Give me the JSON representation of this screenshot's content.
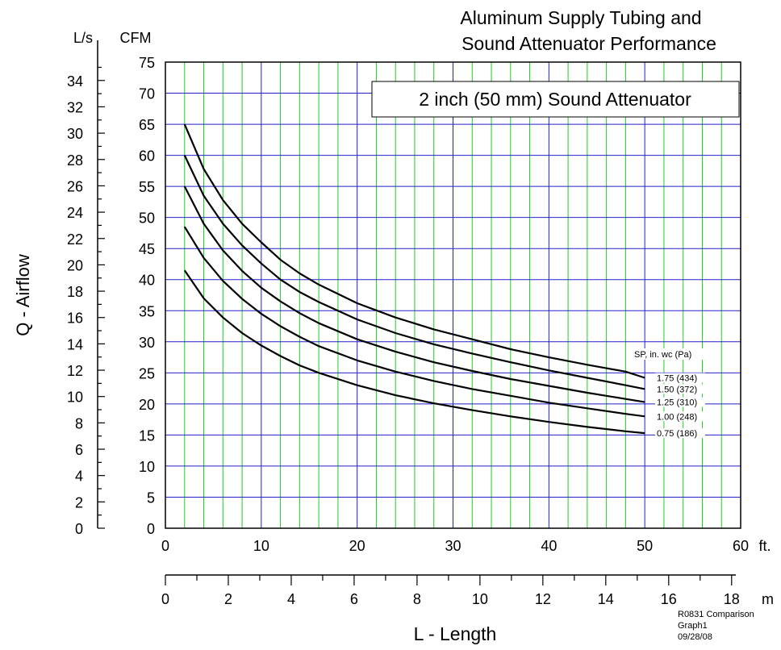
{
  "chart_data": {
    "type": "line",
    "title": [
      "Aluminum Supply Tubing and",
      "Sound Attenuator Performance"
    ],
    "subtitle": "2 inch (50 mm) Sound Attenuator",
    "xlabel": "L - Length",
    "ylabel": "Q - Airflow",
    "x_unit": "ft.",
    "x2_unit": "m",
    "y_unit": "CFM",
    "y2_unit": "L/s",
    "xlim": [
      0,
      60
    ],
    "ylim": [
      0,
      75
    ],
    "x_ticks": [
      0,
      10,
      20,
      30,
      40,
      50,
      60
    ],
    "y_ticks": [
      0,
      5,
      10,
      15,
      20,
      25,
      30,
      35,
      40,
      45,
      50,
      55,
      60,
      65,
      70,
      75
    ],
    "x2_lim": [
      0,
      18.288
    ],
    "x2_ticks": [
      0,
      2,
      4,
      6,
      8,
      10,
      12,
      14,
      16,
      18
    ],
    "y2_lim": [
      0,
      35.396
    ],
    "y2_ticks": [
      0,
      2,
      4,
      6,
      8,
      10,
      12,
      14,
      16,
      18,
      20,
      22,
      24,
      26,
      28,
      30,
      32,
      34
    ],
    "grid": true,
    "minor_grid_color": "#22cc22",
    "major_grid_color": "#2222cc",
    "legend_title": "SP, in. wc (Pa)",
    "series": [
      {
        "name": "1.75 (434)",
        "x": [
          2,
          4,
          6,
          8,
          10,
          12,
          14,
          16,
          20,
          24,
          28,
          32,
          36,
          40,
          44,
          48,
          50
        ],
        "values": [
          65,
          57.8,
          52.8,
          49,
          46,
          43.2,
          41,
          39.2,
          36.2,
          33.9,
          32,
          30.4,
          28.8,
          27.5,
          26.3,
          25.2,
          24.2
        ]
      },
      {
        "name": "1.50 (372)",
        "x": [
          2,
          4,
          6,
          8,
          10,
          12,
          14,
          16,
          20,
          24,
          28,
          32,
          36,
          40,
          44,
          48,
          50
        ],
        "values": [
          60,
          53.5,
          49,
          45.5,
          42.6,
          40,
          38,
          36.4,
          33.6,
          31.4,
          29.6,
          28.1,
          26.7,
          25.4,
          24.2,
          23,
          22.4
        ]
      },
      {
        "name": "1.25 (310)",
        "x": [
          2,
          4,
          6,
          8,
          10,
          12,
          14,
          16,
          20,
          24,
          28,
          32,
          36,
          40,
          44,
          48,
          50
        ],
        "values": [
          55,
          49,
          44.7,
          41.4,
          38.7,
          36.5,
          34.6,
          33,
          30.4,
          28.4,
          26.7,
          25.3,
          24,
          22.9,
          21.8,
          20.8,
          20.3
        ]
      },
      {
        "name": "1.00 (248)",
        "x": [
          2,
          4,
          6,
          8,
          10,
          12,
          14,
          16,
          20,
          24,
          28,
          32,
          36,
          40,
          44,
          48,
          50
        ],
        "values": [
          48.5,
          43.5,
          39.8,
          36.9,
          34.5,
          32.5,
          30.8,
          29.3,
          27,
          25.2,
          23.7,
          22.4,
          21.3,
          20.2,
          19.3,
          18.4,
          18
        ]
      },
      {
        "name": "0.75 (186)",
        "x": [
          2,
          4,
          6,
          8,
          10,
          12,
          14,
          16,
          20,
          24,
          28,
          32,
          36,
          40,
          44,
          48,
          50
        ],
        "values": [
          41.5,
          37,
          33.9,
          31.4,
          29.4,
          27.7,
          26.2,
          25,
          23,
          21.4,
          20.1,
          19,
          18,
          17.1,
          16.3,
          15.6,
          15.3
        ]
      }
    ],
    "footer": [
      "R0831 Comparison",
      "Graph1",
      "09/28/08"
    ]
  }
}
